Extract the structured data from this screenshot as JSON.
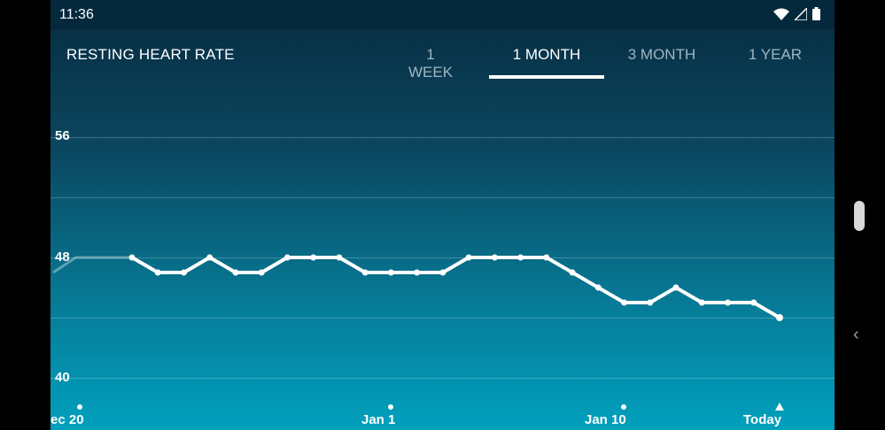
{
  "status_bar": {
    "time": "11:36",
    "icons": [
      "wifi-icon",
      "signal-icon",
      "battery-icon"
    ]
  },
  "header": {
    "title": "RESTING HEART RATE",
    "tabs": [
      {
        "label": "1 WEEK",
        "active": false
      },
      {
        "label": "1 MONTH",
        "active": true
      },
      {
        "label": "3 MONTH",
        "active": false
      },
      {
        "label": "1 YEAR",
        "active": false
      }
    ]
  },
  "chart_data": {
    "type": "line",
    "title": "RESTING HEART RATE",
    "y_ticks": [
      "56",
      "48",
      "40"
    ],
    "ylim": [
      40,
      56
    ],
    "x_tick_labels": [
      "ec 20",
      "Jan 1",
      "Jan 10",
      "Today"
    ],
    "series": [
      {
        "values": [
          48,
          47,
          47,
          48,
          47,
          47,
          48,
          48,
          48,
          47,
          47,
          47,
          47,
          48,
          48,
          48,
          48,
          47,
          46,
          45,
          45,
          46,
          45,
          45,
          45,
          44
        ]
      }
    ],
    "leading_faded_values": [
      47,
      48,
      48,
      48
    ]
  },
  "colors": {
    "line": "#ffffff",
    "bg_top": "#072b40",
    "bg_bottom": "#00a0bd"
  }
}
